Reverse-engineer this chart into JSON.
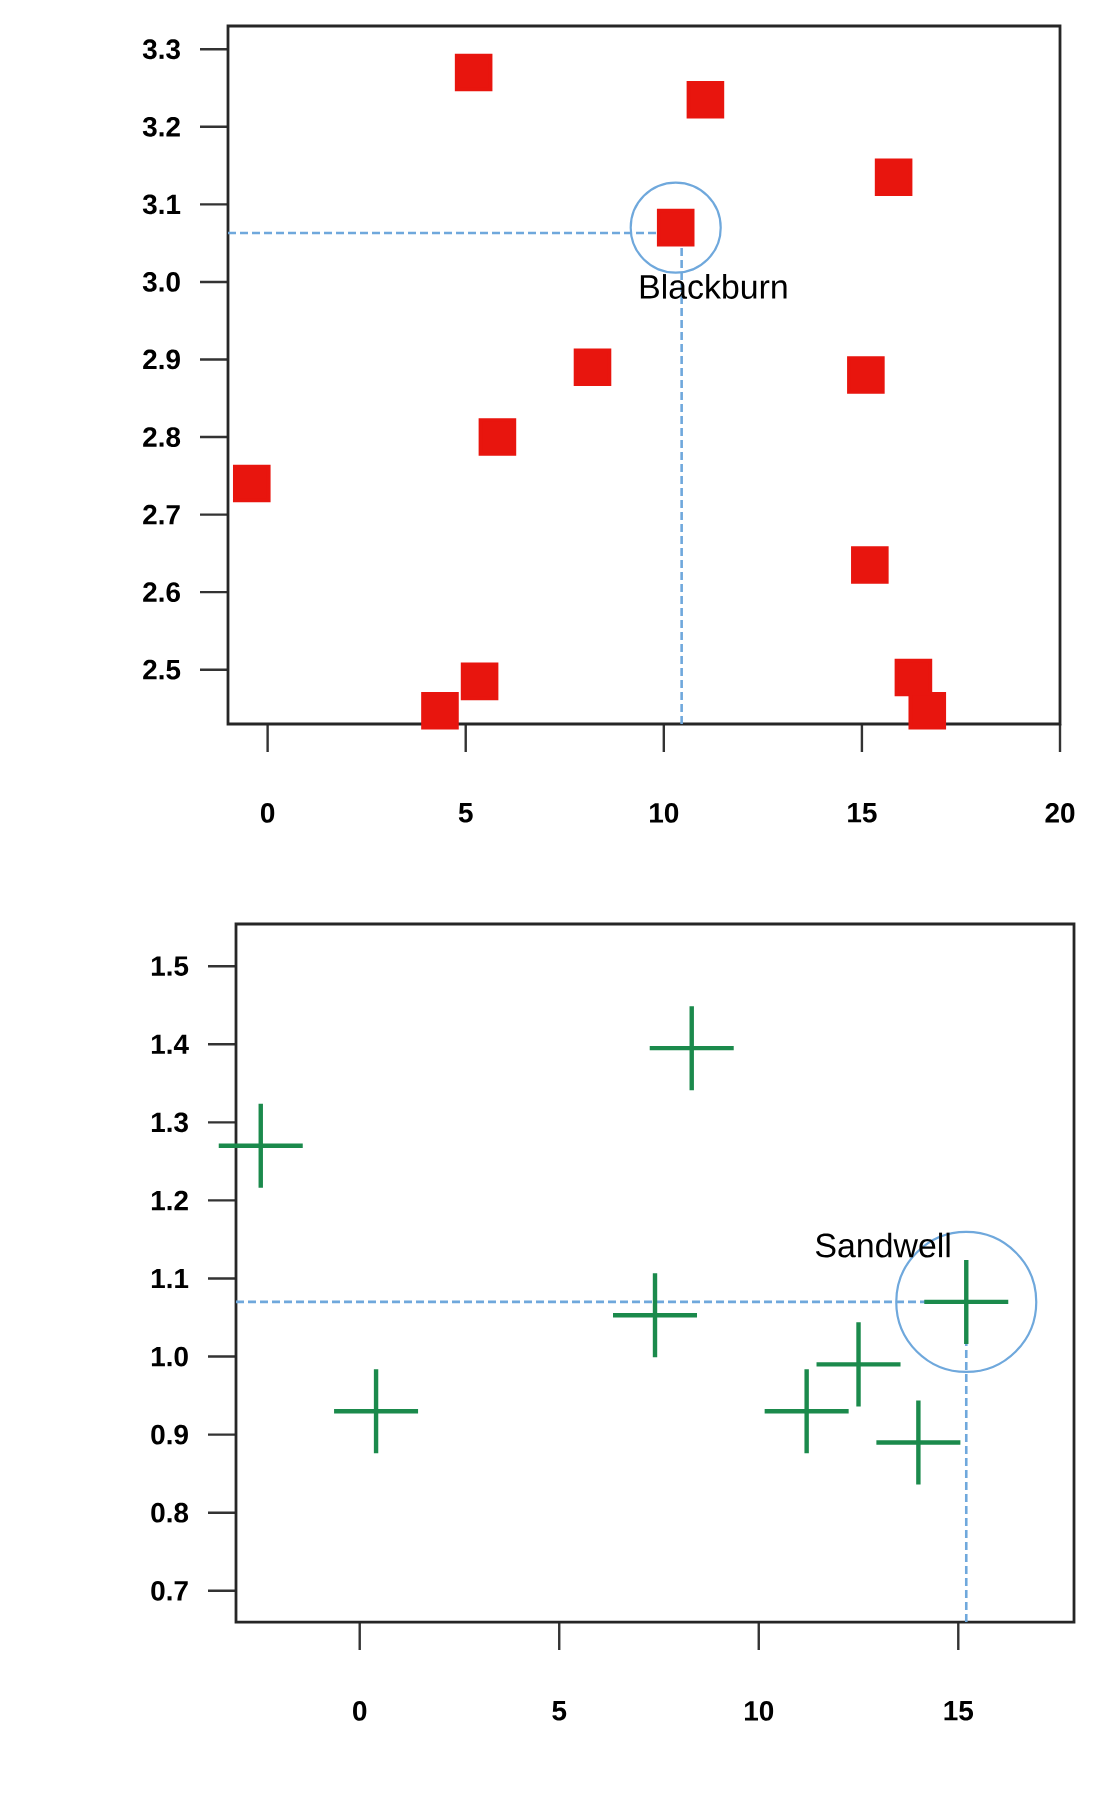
{
  "chart_data": [
    {
      "type": "scatter",
      "marker": "square",
      "xlim": [
        -1,
        20
      ],
      "ylim": [
        2.43,
        3.33
      ],
      "xticks": [
        0,
        5,
        10,
        15,
        20
      ],
      "yticks": [
        2.5,
        2.6,
        2.7,
        2.8,
        2.9,
        {
          "value": 3.0,
          "label": "3.0"
        },
        3.1,
        3.2,
        3.3
      ],
      "grid": false,
      "x": [
        5.2,
        11.05,
        15.8,
        10.3,
        8.2,
        15.1,
        5.8,
        -0.4,
        15.2,
        5.35,
        4.35,
        16.3,
        16.65
      ],
      "series": [
        {
          "color": "#e8150e",
          "values": [
            3.27,
            3.235,
            3.135,
            3.07,
            2.89,
            2.88,
            2.8,
            2.74,
            2.635,
            2.485,
            2.447,
            2.49,
            2.447
          ]
        }
      ],
      "ref_lines": [
        {
          "axis": "y",
          "value": 3.063,
          "color": "#6fa8dc",
          "line_style": "dashed"
        },
        {
          "axis": "x",
          "value": 10.45,
          "color": "#6fa8dc",
          "line_style": "dashed"
        }
      ],
      "annotations": [
        {
          "text": "Blackburn",
          "x": 10.3,
          "y": 3.07
        }
      ]
    },
    {
      "type": "scatter",
      "marker": "cross",
      "xlim": [
        -3.1,
        17.9
      ],
      "ylim": [
        0.66,
        1.554
      ],
      "xticks": [
        0,
        5,
        10,
        15
      ],
      "yticks": [
        0.7,
        0.8,
        0.9,
        {
          "value": 1.0,
          "label": "1.0"
        },
        1.1,
        1.2,
        1.3,
        1.4,
        1.5
      ],
      "grid": false,
      "x": [
        -2.48,
        8.32,
        0.41,
        7.4,
        12.5,
        11.2,
        14.0,
        15.2
      ],
      "series": [
        {
          "color": "#1b8a4c",
          "values": [
            1.27,
            1.395,
            0.93,
            1.053,
            0.99,
            0.93,
            0.89,
            1.07
          ]
        }
      ],
      "ref_lines": [
        {
          "axis": "y",
          "value": 1.07,
          "color": "#6fa8dc",
          "line_style": "dashed"
        },
        {
          "axis": "x",
          "value": 15.2,
          "color": "#6fa8dc",
          "line_style": "dashed"
        }
      ],
      "annotations": [
        {
          "text": "Sandwell",
          "x": 15.2,
          "y": 1.07
        }
      ]
    }
  ]
}
